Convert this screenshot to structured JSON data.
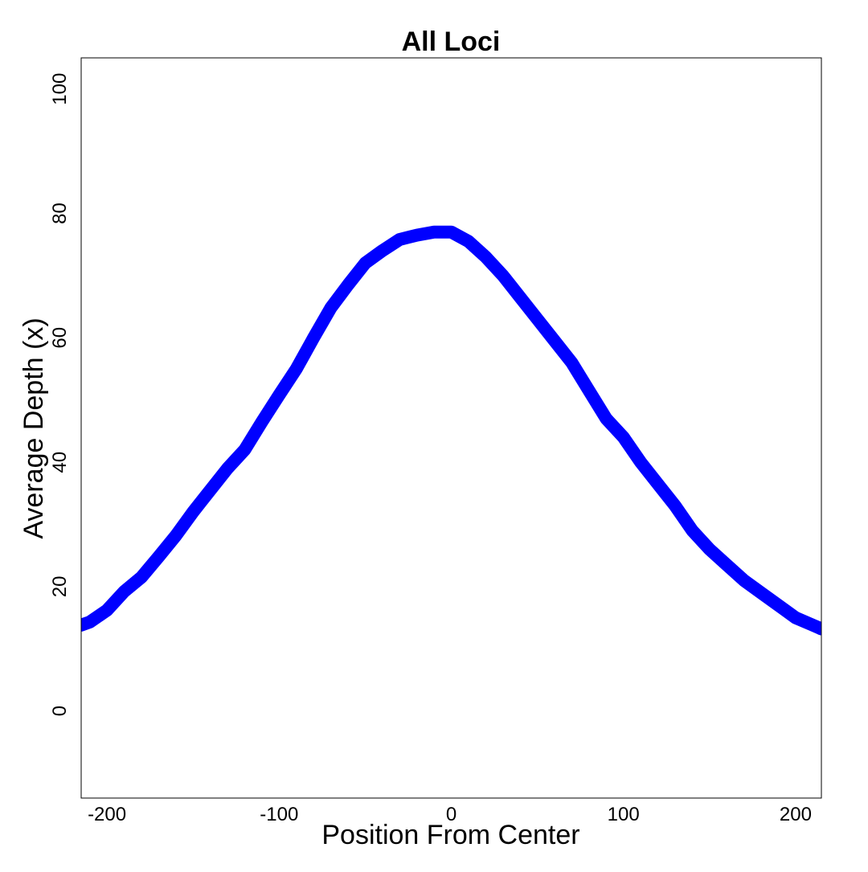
{
  "chart_data": {
    "type": "line",
    "title": "All Loci",
    "xlabel": "Position From Center",
    "ylabel": "Average Depth (x)",
    "xlim": [
      -215,
      215
    ],
    "ylim": [
      -14,
      105
    ],
    "x_ticks": [
      -200,
      -100,
      0,
      100,
      200
    ],
    "x_tick_labels": [
      "-200",
      "-100",
      "0",
      "100",
      "200"
    ],
    "y_ticks": [
      0,
      20,
      40,
      60,
      80,
      100
    ],
    "y_tick_labels": [
      "0",
      "20",
      "40",
      "60",
      "80",
      "100"
    ],
    "grid": false,
    "series": [
      {
        "color": "#0000ff",
        "x": [
          -215,
          -210,
          -200,
          -190,
          -180,
          -170,
          -160,
          -150,
          -140,
          -130,
          -120,
          -110,
          -100,
          -90,
          -80,
          -70,
          -60,
          -50,
          -40,
          -30,
          -20,
          -10,
          0,
          10,
          20,
          30,
          40,
          50,
          60,
          70,
          80,
          90,
          100,
          110,
          120,
          130,
          140,
          150,
          160,
          170,
          180,
          190,
          200,
          210,
          215
        ],
        "y": [
          13.8,
          14.3,
          16.2,
          19.2,
          21.5,
          24.8,
          28.2,
          32.0,
          35.5,
          39.0,
          42.0,
          46.5,
          50.8,
          55.0,
          60.0,
          64.8,
          68.5,
          72.0,
          74.0,
          75.8,
          76.5,
          77.0,
          77.0,
          75.5,
          73.0,
          70.0,
          66.5,
          63.0,
          59.5,
          56.0,
          51.5,
          47.0,
          44.0,
          40.0,
          36.5,
          33.0,
          29.0,
          26.0,
          23.5,
          21.0,
          19.0,
          17.0,
          15.0,
          13.8,
          13.2
        ]
      }
    ]
  }
}
